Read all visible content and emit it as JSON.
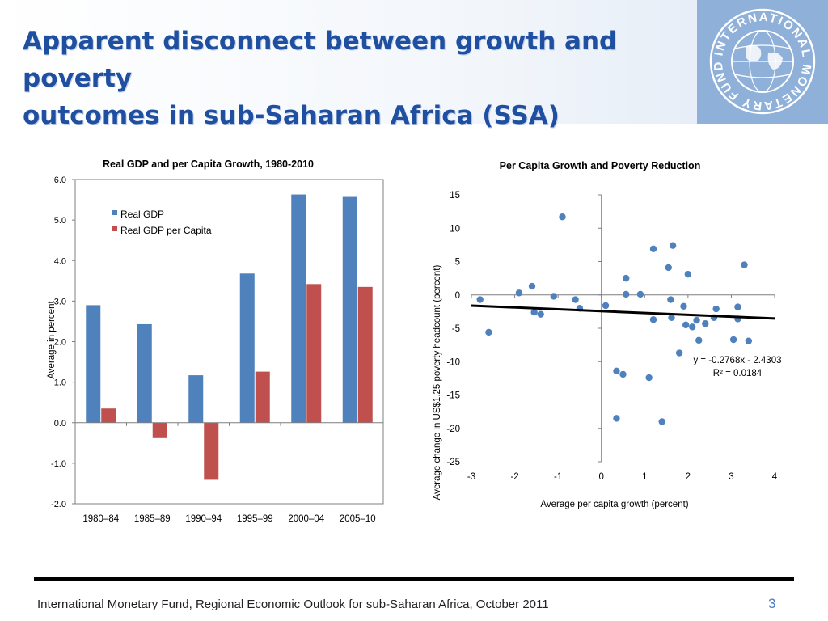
{
  "slide": {
    "title_line1": "Apparent disconnect between growth and poverty",
    "title_line2": "outcomes in sub-Saharan Africa (SSA)",
    "logo_text": "INTERNATIONAL MONETARY FUND",
    "footer": "International Monetary Fund, Regional Economic Outlook for sub-Saharan Africa, October 2011",
    "page_number": "3"
  },
  "colors": {
    "title": "#1f4fa0",
    "series_gdp": "#4f81bd",
    "series_per_capita": "#c0504d",
    "scatter_point": "#4f81bd",
    "trendline": "#000000",
    "page_number": "#4a7dc4"
  },
  "chart_data": [
    {
      "type": "bar",
      "title": "Real GDP and per Capita Growth, 1980-2010",
      "ylabel": "Average in percent",
      "xlabel": "",
      "categories": [
        "1980–84",
        "1985–89",
        "1990–94",
        "1995–99",
        "2000–04",
        "2005–10"
      ],
      "series": [
        {
          "name": "Real GDP",
          "values": [
            2.9,
            2.43,
            1.17,
            3.68,
            5.63,
            5.57
          ]
        },
        {
          "name": "Real GDP per Capita",
          "values": [
            0.35,
            -0.38,
            -1.41,
            1.26,
            3.42,
            3.35
          ]
        }
      ],
      "ylim": [
        -2.0,
        6.0
      ],
      "yticks": [
        "6.0",
        "5.0",
        "4.0",
        "3.0",
        "2.0",
        "1.0",
        "0.0",
        "-1.0",
        "-2.0"
      ],
      "legend": "top-left",
      "grid": false
    },
    {
      "type": "scatter",
      "title": "Per Capita Growth and Poverty Reduction",
      "xlabel": "Average per capita growth (percent)",
      "ylabel": "Average change in US$1.25 poverty headcount (percent)",
      "xlim": [
        -3,
        4
      ],
      "ylim": [
        -25,
        15
      ],
      "xticks": [
        "-3",
        "-2",
        "-1",
        "0",
        "1",
        "2",
        "3",
        "4"
      ],
      "yticks": [
        "15",
        "10",
        "5",
        "0",
        "-5",
        "-10",
        "-15",
        "-20",
        "-25"
      ],
      "points": [
        {
          "x": -2.8,
          "y": -0.7
        },
        {
          "x": -2.6,
          "y": -5.6
        },
        {
          "x": -1.9,
          "y": 0.3
        },
        {
          "x": -1.6,
          "y": 1.3
        },
        {
          "x": -1.55,
          "y": -2.6
        },
        {
          "x": -1.4,
          "y": -2.9
        },
        {
          "x": -1.1,
          "y": -0.2
        },
        {
          "x": -0.9,
          "y": 11.7
        },
        {
          "x": -0.6,
          "y": -0.7
        },
        {
          "x": -0.5,
          "y": -2.0
        },
        {
          "x": 0.1,
          "y": -1.6
        },
        {
          "x": 0.35,
          "y": -11.4
        },
        {
          "x": 0.35,
          "y": -18.5
        },
        {
          "x": 0.5,
          "y": -11.9
        },
        {
          "x": 0.57,
          "y": 2.5
        },
        {
          "x": 0.57,
          "y": 0.1
        },
        {
          "x": 0.9,
          "y": 0.1
        },
        {
          "x": 1.1,
          "y": -12.4
        },
        {
          "x": 1.2,
          "y": 6.9
        },
        {
          "x": 1.2,
          "y": -3.7
        },
        {
          "x": 1.4,
          "y": -19.0
        },
        {
          "x": 1.55,
          "y": 4.1
        },
        {
          "x": 1.6,
          "y": -0.7
        },
        {
          "x": 1.62,
          "y": -3.4
        },
        {
          "x": 1.65,
          "y": 7.4
        },
        {
          "x": 1.8,
          "y": -8.7
        },
        {
          "x": 1.9,
          "y": -1.7
        },
        {
          "x": 1.95,
          "y": -4.5
        },
        {
          "x": 2.0,
          "y": 3.1
        },
        {
          "x": 2.1,
          "y": -4.8
        },
        {
          "x": 2.2,
          "y": -3.8
        },
        {
          "x": 2.25,
          "y": -6.8
        },
        {
          "x": 2.4,
          "y": -4.3
        },
        {
          "x": 2.6,
          "y": -3.4
        },
        {
          "x": 2.65,
          "y": -2.1
        },
        {
          "x": 3.05,
          "y": -6.7
        },
        {
          "x": 3.15,
          "y": -1.8
        },
        {
          "x": 3.15,
          "y": -3.6
        },
        {
          "x": 3.3,
          "y": 4.5
        },
        {
          "x": 3.4,
          "y": -6.9
        }
      ],
      "trendline": {
        "slope": -0.2768,
        "intercept": -2.4303
      },
      "equation_label": "y = -0.2768x - 2.4303",
      "r2_label": "R² = 0.0184",
      "grid": false
    }
  ]
}
